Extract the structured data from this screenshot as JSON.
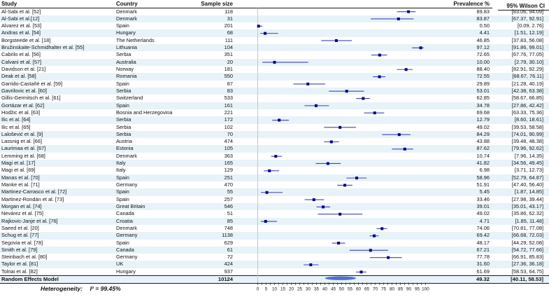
{
  "table": {
    "columns": [
      "Study",
      "Country",
      "Sample size",
      "Prevalence %",
      "95% Wilson CI"
    ]
  },
  "figure": {
    "heterogeneity_label": "Heterogeneity:",
    "heterogeneity_value": "I² = 99.45%"
  },
  "colors": {
    "stripe": "#e7f3f9",
    "ci_line": "#4343b2",
    "marker": "#00008b",
    "summary_diamond": "#3f63cc",
    "zero_line": "#c3c8cc",
    "rule": "#1a1a1a"
  },
  "chart_data": {
    "type": "forest",
    "xlabel": "Prevalence %",
    "axis": {
      "min": 0,
      "max": 100,
      "tick_step": 2.5,
      "label_step": 5
    },
    "legend": "none",
    "studies": [
      {
        "study": "Al-Sabi et al. [52]",
        "country": "Denmark",
        "sample_size": "118",
        "prevalence": "89.83",
        "ci_low": 83.06,
        "ci_high": 94.09,
        "ci_label": "[83.06, 94.09]"
      },
      {
        "study": "Al-Sabi et al.[12]",
        "country": "Denmark",
        "sample_size": "31",
        "prevalence": "83.87",
        "ci_low": 67.37,
        "ci_high": 92.91,
        "ci_label": "[67.37, 92.91]"
      },
      {
        "study": "Alvarez et al. [53]",
        "country": "Spain",
        "sample_size": "201",
        "prevalence": "0.50",
        "ci_low": 0.09,
        "ci_high": 2.76,
        "ci_label": "[0.09, 2.76]"
      },
      {
        "study": "Andras et al. [54]",
        "country": "Hungary",
        "sample_size": "68",
        "prevalence": "4.41",
        "ci_low": 1.51,
        "ci_high": 12.19,
        "ci_label": "[1.51, 12.19]"
      },
      {
        "study": "Borgsteede et al. [18]",
        "country": "The Netherlands",
        "sample_size": "111",
        "prevalence": "46.85",
        "ci_low": 37.83,
        "ci_high": 56.08,
        "ci_label": "[37.83, 56.08]"
      },
      {
        "study": "Bružinskaite-Schmidhalter et al. [55]",
        "country": "Lithuania",
        "sample_size": "104",
        "prevalence": "97.12",
        "ci_low": 91.86,
        "ci_high": 99.01,
        "ci_label": "[91.86, 99.01]"
      },
      {
        "study": "Cabrilo et al. [56]",
        "country": "Serbia",
        "sample_size": "351",
        "prevalence": "72.65",
        "ci_low": 67.76,
        "ci_high": 77.05,
        "ci_label": "[67.76, 77.05]"
      },
      {
        "study": "Calvani et al. [57]",
        "country": "Australia",
        "sample_size": "20",
        "prevalence": "10.00",
        "ci_low": 2.79,
        "ci_high": 30.1,
        "ci_label": "[2.79, 30.10]"
      },
      {
        "study": "Davidson et al. [21]",
        "country": "Norway",
        "sample_size": "181",
        "prevalence": "88.40",
        "ci_low": 82.91,
        "ci_high": 92.29,
        "ci_label": "[82.91, 92.29]"
      },
      {
        "study": "Deak et al. [58]",
        "country": "Romania",
        "sample_size": "550",
        "prevalence": "72.55",
        "ci_low": 68.67,
        "ci_high": 76.11,
        "ci_label": "[68.67, 76.11]"
      },
      {
        "study": "Garrido-Castañé et al. [59]",
        "country": "Spain",
        "sample_size": "87",
        "prevalence": "29.89",
        "ci_low": 21.28,
        "ci_high": 40.19,
        "ci_label": "[21.28, 40.19]"
      },
      {
        "study": "Gavrilovic et al. [60]",
        "country": "Serbia",
        "sample_size": "83",
        "prevalence": "53.01",
        "ci_low": 42.38,
        "ci_high": 63.38,
        "ci_label": "[42.38, 63.38]"
      },
      {
        "study": "Gillis-Germitsch et al. [61]",
        "country": "Switzerland",
        "sample_size": "533",
        "prevalence": "62.85",
        "ci_low": 58.67,
        "ci_high": 66.85,
        "ci_label": "[58.67, 66.85]"
      },
      {
        "study": "Gortázar et al. [62]",
        "country": "Spain",
        "sample_size": "161",
        "prevalence": "34.78",
        "ci_low": 27.86,
        "ci_high": 42.42,
        "ci_label": "[27.86, 42.42]"
      },
      {
        "study": "Hodžic et al. [63]",
        "country": "Bosnia and Herzegovina",
        "sample_size": "221",
        "prevalence": "69.68",
        "ci_low": 63.33,
        "ci_high": 75.36,
        "ci_label": "[63.33, 75.36]"
      },
      {
        "study": "Ilic et al. [64]",
        "country": "Serbia",
        "sample_size": "172",
        "prevalence": "12.79",
        "ci_low": 8.6,
        "ci_high": 18.61,
        "ci_label": "[8.60, 18.61]"
      },
      {
        "study": "Ilic et al. [65]",
        "country": "Serbia",
        "sample_size": "102",
        "prevalence": "49.02",
        "ci_low": 39.53,
        "ci_high": 58.58,
        "ci_label": "[39.53, 58.58]"
      },
      {
        "study": "Lalošević et al. [9]",
        "country": "Serbia",
        "sample_size": "70",
        "prevalence": "84.29",
        "ci_low": 74.01,
        "ci_high": 90.99,
        "ci_label": "[74.01, 90.99]"
      },
      {
        "study": "Lassnig et al. [66]",
        "country": "Austria",
        "sample_size": "474",
        "prevalence": "43.88",
        "ci_low": 39.48,
        "ci_high": 48.38,
        "ci_label": "[39.48, 48.38]"
      },
      {
        "study": "Laurimaa et al. [67]",
        "country": "Estonia",
        "sample_size": "105",
        "prevalence": "87.62",
        "ci_low": 79.96,
        "ci_high": 92.62,
        "ci_label": "[79.96, 92.62]"
      },
      {
        "study": "Lemming et al. [68]",
        "country": "Denmark",
        "sample_size": "363",
        "prevalence": "10.74",
        "ci_low": 7.96,
        "ci_high": 14.35,
        "ci_label": "[7.96, 14.35]"
      },
      {
        "study": "Magi et al. [17]",
        "country": "Italy",
        "sample_size": "165",
        "prevalence": "41.82",
        "ci_low": 34.56,
        "ci_high": 49.45,
        "ci_label": "[34.56, 49.45]"
      },
      {
        "study": "Magi et al. [69]",
        "country": "Italy",
        "sample_size": "129",
        "prevalence": "6.98",
        "ci_low": 3.71,
        "ci_high": 12.73,
        "ci_label": "[3.71, 12.73]"
      },
      {
        "study": "Manas et al. [70]",
        "country": "Spain",
        "sample_size": "251",
        "prevalence": "58.96",
        "ci_low": 52.79,
        "ci_high": 64.87,
        "ci_label": "[52.79, 64.87]"
      },
      {
        "study": "Manke et al. [71]",
        "country": "Germany",
        "sample_size": "470",
        "prevalence": "51.91",
        "ci_low": 47.4,
        "ci_high": 56.4,
        "ci_label": "[47.40, 56.40]"
      },
      {
        "study": "Martinez-Carrasco et al. [72]",
        "country": "Spain",
        "sample_size": "55",
        "prevalence": "5.45",
        "ci_low": 1.87,
        "ci_high": 14.85,
        "ci_label": "[1.87, 14.85]"
      },
      {
        "study": "Martinez-Rondán et al. [73]",
        "country": "Spain",
        "sample_size": "257",
        "prevalence": "33.46",
        "ci_low": 27.98,
        "ci_high": 39.44,
        "ci_label": "[27.98, 39.44]"
      },
      {
        "study": "Morgan et al. [74]",
        "country": "Great Britain",
        "sample_size": "546",
        "prevalence": "39.01",
        "ci_low": 35.01,
        "ci_high": 43.17,
        "ci_label": "[35.01, 43.17]"
      },
      {
        "study": "Nevárez et al. [75]",
        "country": "Canada",
        "sample_size": "51",
        "prevalence": "49.02",
        "ci_low": 35.86,
        "ci_high": 62.32,
        "ci_label": "[35.86, 62.32]"
      },
      {
        "study": "Rajkovic-Janje et al. [76]",
        "country": "Croatia",
        "sample_size": "85",
        "prevalence": "4.71",
        "ci_low": 1.85,
        "ci_high": 11.48,
        "ci_label": "[1.85, 11.48]"
      },
      {
        "study": "Saeed et al. [20]",
        "country": "Denmark",
        "sample_size": "748",
        "prevalence": "74.06",
        "ci_low": 70.81,
        "ci_high": 77.08,
        "ci_label": "[70.81, 77.08]"
      },
      {
        "study": "Schug et al. [77]",
        "country": "Germany",
        "sample_size": "1138",
        "prevalence": "69.42",
        "ci_low": 66.68,
        "ci_high": 72.03,
        "ci_label": "[66.68, 72.03]"
      },
      {
        "study": "Segovia et al. [78]",
        "country": "Spain",
        "sample_size": "629",
        "prevalence": "48.17",
        "ci_low": 44.29,
        "ci_high": 52.08,
        "ci_label": "[44.29, 52.08]"
      },
      {
        "study": "Smith et al. [79]",
        "country": "Canada",
        "sample_size": "61",
        "prevalence": "67.21",
        "ci_low": 54.72,
        "ci_high": 77.66,
        "ci_label": "[54.72, 77.66]"
      },
      {
        "study": "Steinbach et al. [80]",
        "country": "Germany",
        "sample_size": "72",
        "prevalence": "77.78",
        "ci_low": 66.91,
        "ci_high": 85.83,
        "ci_label": "[66.91, 85.83]"
      },
      {
        "study": "Taylor et al. [81]",
        "country": "UK",
        "sample_size": "424",
        "prevalence": "31.60",
        "ci_low": 27.36,
        "ci_high": 36.18,
        "ci_label": "[27.36, 36.18]"
      },
      {
        "study": "Tolnai et al. [82]",
        "country": "Hungary",
        "sample_size": "937",
        "prevalence": "61.69",
        "ci_low": 58.53,
        "ci_high": 64.75,
        "ci_label": "[58.53, 64.75]"
      }
    ],
    "summary": {
      "study": "Random Effects Model",
      "sample_size": "10124",
      "prevalence": "49.32",
      "prevalence_value": 49.32,
      "ci_low": 40.11,
      "ci_high": 58.53,
      "ci_label": "[40.11, 58.53]"
    }
  }
}
